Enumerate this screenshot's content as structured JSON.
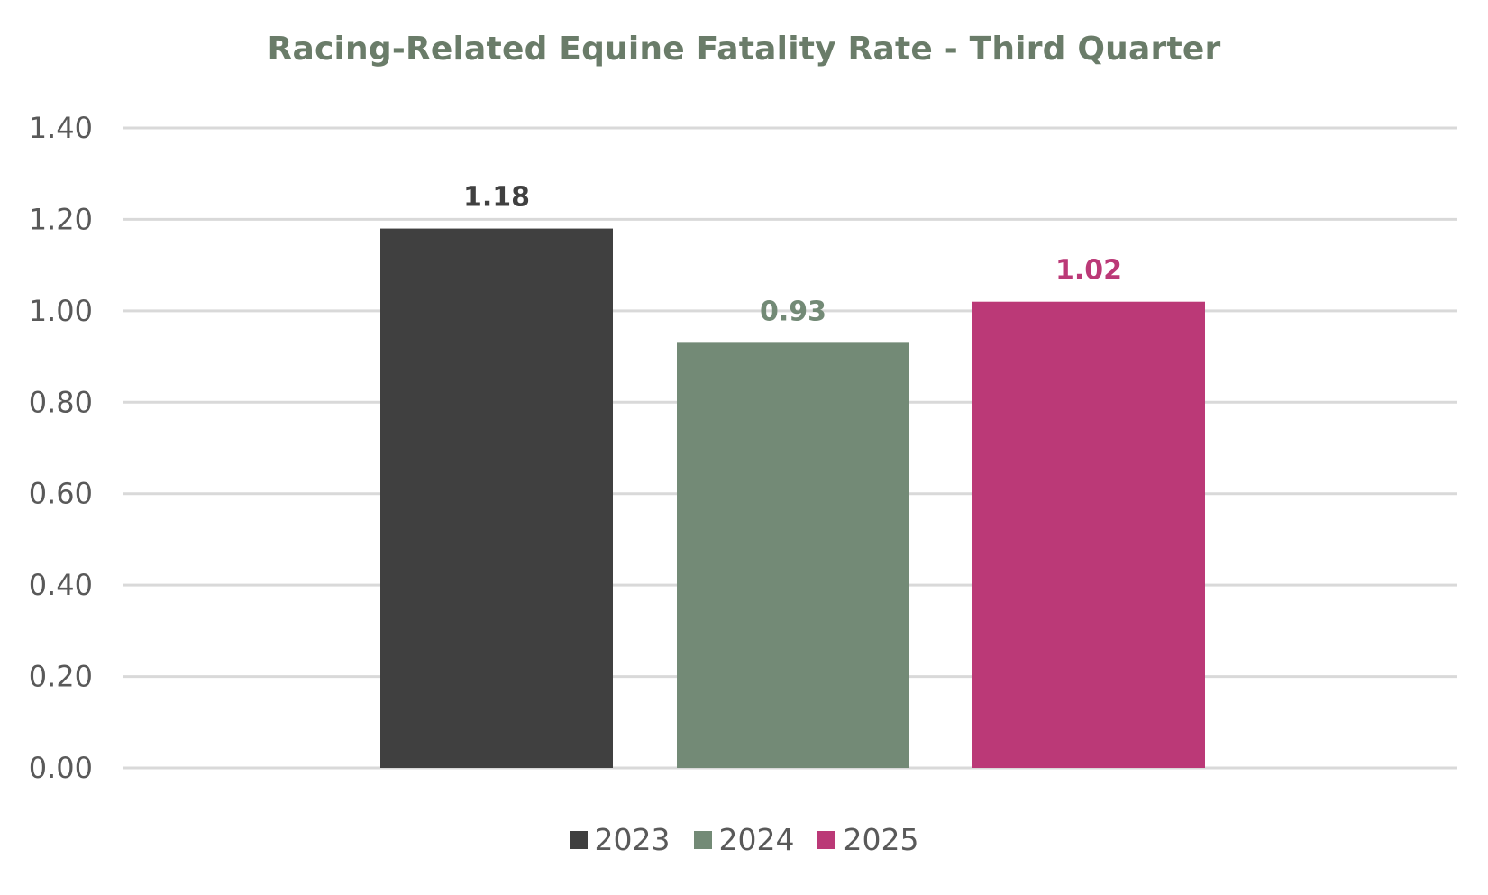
{
  "chart_data": {
    "type": "bar",
    "title": "Racing-Related Equine Fatality Rate - Third Quarter",
    "xlabel": "",
    "ylabel": "",
    "ylim": [
      0,
      1.4
    ],
    "y_ticks": [
      "0.00",
      "0.20",
      "0.40",
      "0.60",
      "0.80",
      "1.00",
      "1.20",
      "1.40"
    ],
    "grid": true,
    "legend_position": "bottom",
    "series": [
      {
        "name": "2023",
        "value": 1.18,
        "label": "1.18",
        "color": "#404040"
      },
      {
        "name": "2024",
        "value": 0.93,
        "label": "0.93",
        "color": "#738a76"
      },
      {
        "name": "2025",
        "value": 1.02,
        "label": "1.02",
        "color": "#bb3977"
      }
    ]
  }
}
